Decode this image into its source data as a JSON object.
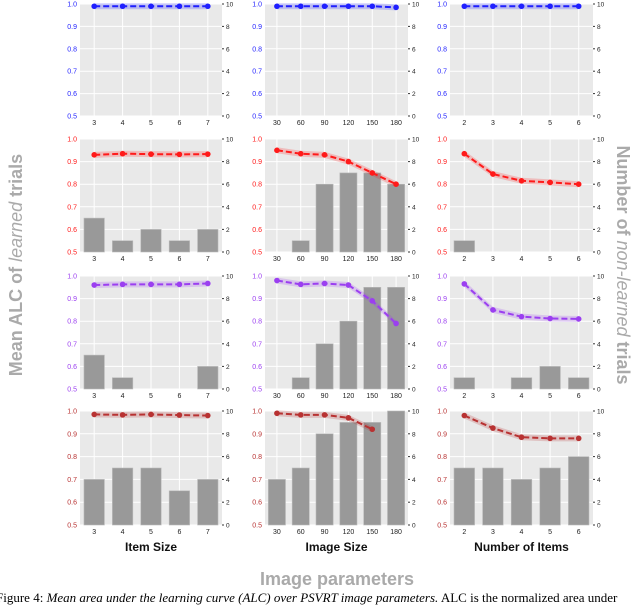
{
  "chart_data": {
    "type": "line+bar",
    "grid": true,
    "left_axis": {
      "label_prefix": "Mean ALC of ",
      "label_italic": "learned",
      "label_suffix": " trials",
      "ylim": [
        0.5,
        1.0
      ],
      "ticks": [
        "0.5",
        "0.6",
        "0.7",
        "0.8",
        "0.9",
        "1.0"
      ]
    },
    "right_axis": {
      "label_prefix": "Number of ",
      "label_italic": "non-learned",
      "label_suffix": " trials",
      "ylim": [
        0,
        10
      ],
      "ticks": [
        "0",
        "2",
        "4",
        "6",
        "8",
        "10"
      ]
    },
    "supxlabel": "Image parameters",
    "columns": [
      {
        "xlabel": "Item Size",
        "categories": [
          "3",
          "4",
          "5",
          "6",
          "7"
        ]
      },
      {
        "xlabel": "Image Size",
        "categories": [
          "30",
          "60",
          "90",
          "120",
          "150",
          "180"
        ]
      },
      {
        "xlabel": "Number of Items",
        "categories": [
          "2",
          "3",
          "4",
          "5",
          "6"
        ]
      }
    ],
    "rows": [
      {
        "color": "#1f1fff",
        "panels": [
          {
            "line": [
              0.99,
              0.99,
              0.99,
              0.99,
              0.99
            ],
            "bars": [
              0,
              0,
              0,
              0,
              0
            ]
          },
          {
            "line": [
              0.99,
              0.99,
              0.99,
              0.99,
              0.99,
              0.985
            ],
            "bars": [
              0,
              0,
              0,
              0,
              0,
              0
            ]
          },
          {
            "line": [
              0.99,
              0.99,
              0.99,
              0.99,
              0.99
            ],
            "bars": [
              0,
              0,
              0,
              0,
              0
            ]
          }
        ]
      },
      {
        "color": "#ff1a1a",
        "panels": [
          {
            "line": [
              0.93,
              0.935,
              0.933,
              0.932,
              0.933
            ],
            "bars": [
              3,
              1,
              2,
              1,
              2
            ]
          },
          {
            "line": [
              0.95,
              0.935,
              0.93,
              0.9,
              0.85,
              0.8
            ],
            "bars": [
              0,
              1,
              6,
              7,
              7,
              6
            ]
          },
          {
            "line": [
              0.935,
              0.845,
              0.815,
              0.808,
              0.8
            ],
            "bars": [
              1,
              0,
              0,
              0,
              0
            ]
          }
        ]
      },
      {
        "color": "#9b3ff0",
        "panels": [
          {
            "line": [
              0.96,
              0.963,
              0.963,
              0.963,
              0.967
            ],
            "bars": [
              3,
              1,
              0,
              0,
              2
            ]
          },
          {
            "line": [
              0.98,
              0.963,
              0.967,
              0.96,
              0.89,
              0.79
            ],
            "bars": [
              0,
              1,
              4,
              6,
              9,
              9
            ]
          },
          {
            "line": [
              0.965,
              0.85,
              0.82,
              0.812,
              0.81
            ],
            "bars": [
              1,
              0,
              1,
              2,
              1
            ]
          }
        ]
      },
      {
        "color": "#b83232",
        "panels": [
          {
            "line": [
              0.985,
              0.983,
              0.985,
              0.982,
              0.98
            ],
            "bars": [
              4,
              5,
              5,
              3,
              4
            ]
          },
          {
            "line": [
              0.99,
              0.983,
              0.983,
              0.97,
              0.92,
              null
            ],
            "bars": [
              4,
              5,
              8,
              9,
              9,
              10
            ]
          },
          {
            "line": [
              0.98,
              0.925,
              0.885,
              0.88,
              0.88
            ],
            "bars": [
              5,
              5,
              4,
              5,
              6
            ]
          }
        ]
      }
    ]
  },
  "caption": {
    "prefix": "Figure 4: ",
    "italic": "Mean area under the learning curve (ALC) over PSVRT image parameters.",
    "suffix": " ALC is the normalized area under"
  }
}
